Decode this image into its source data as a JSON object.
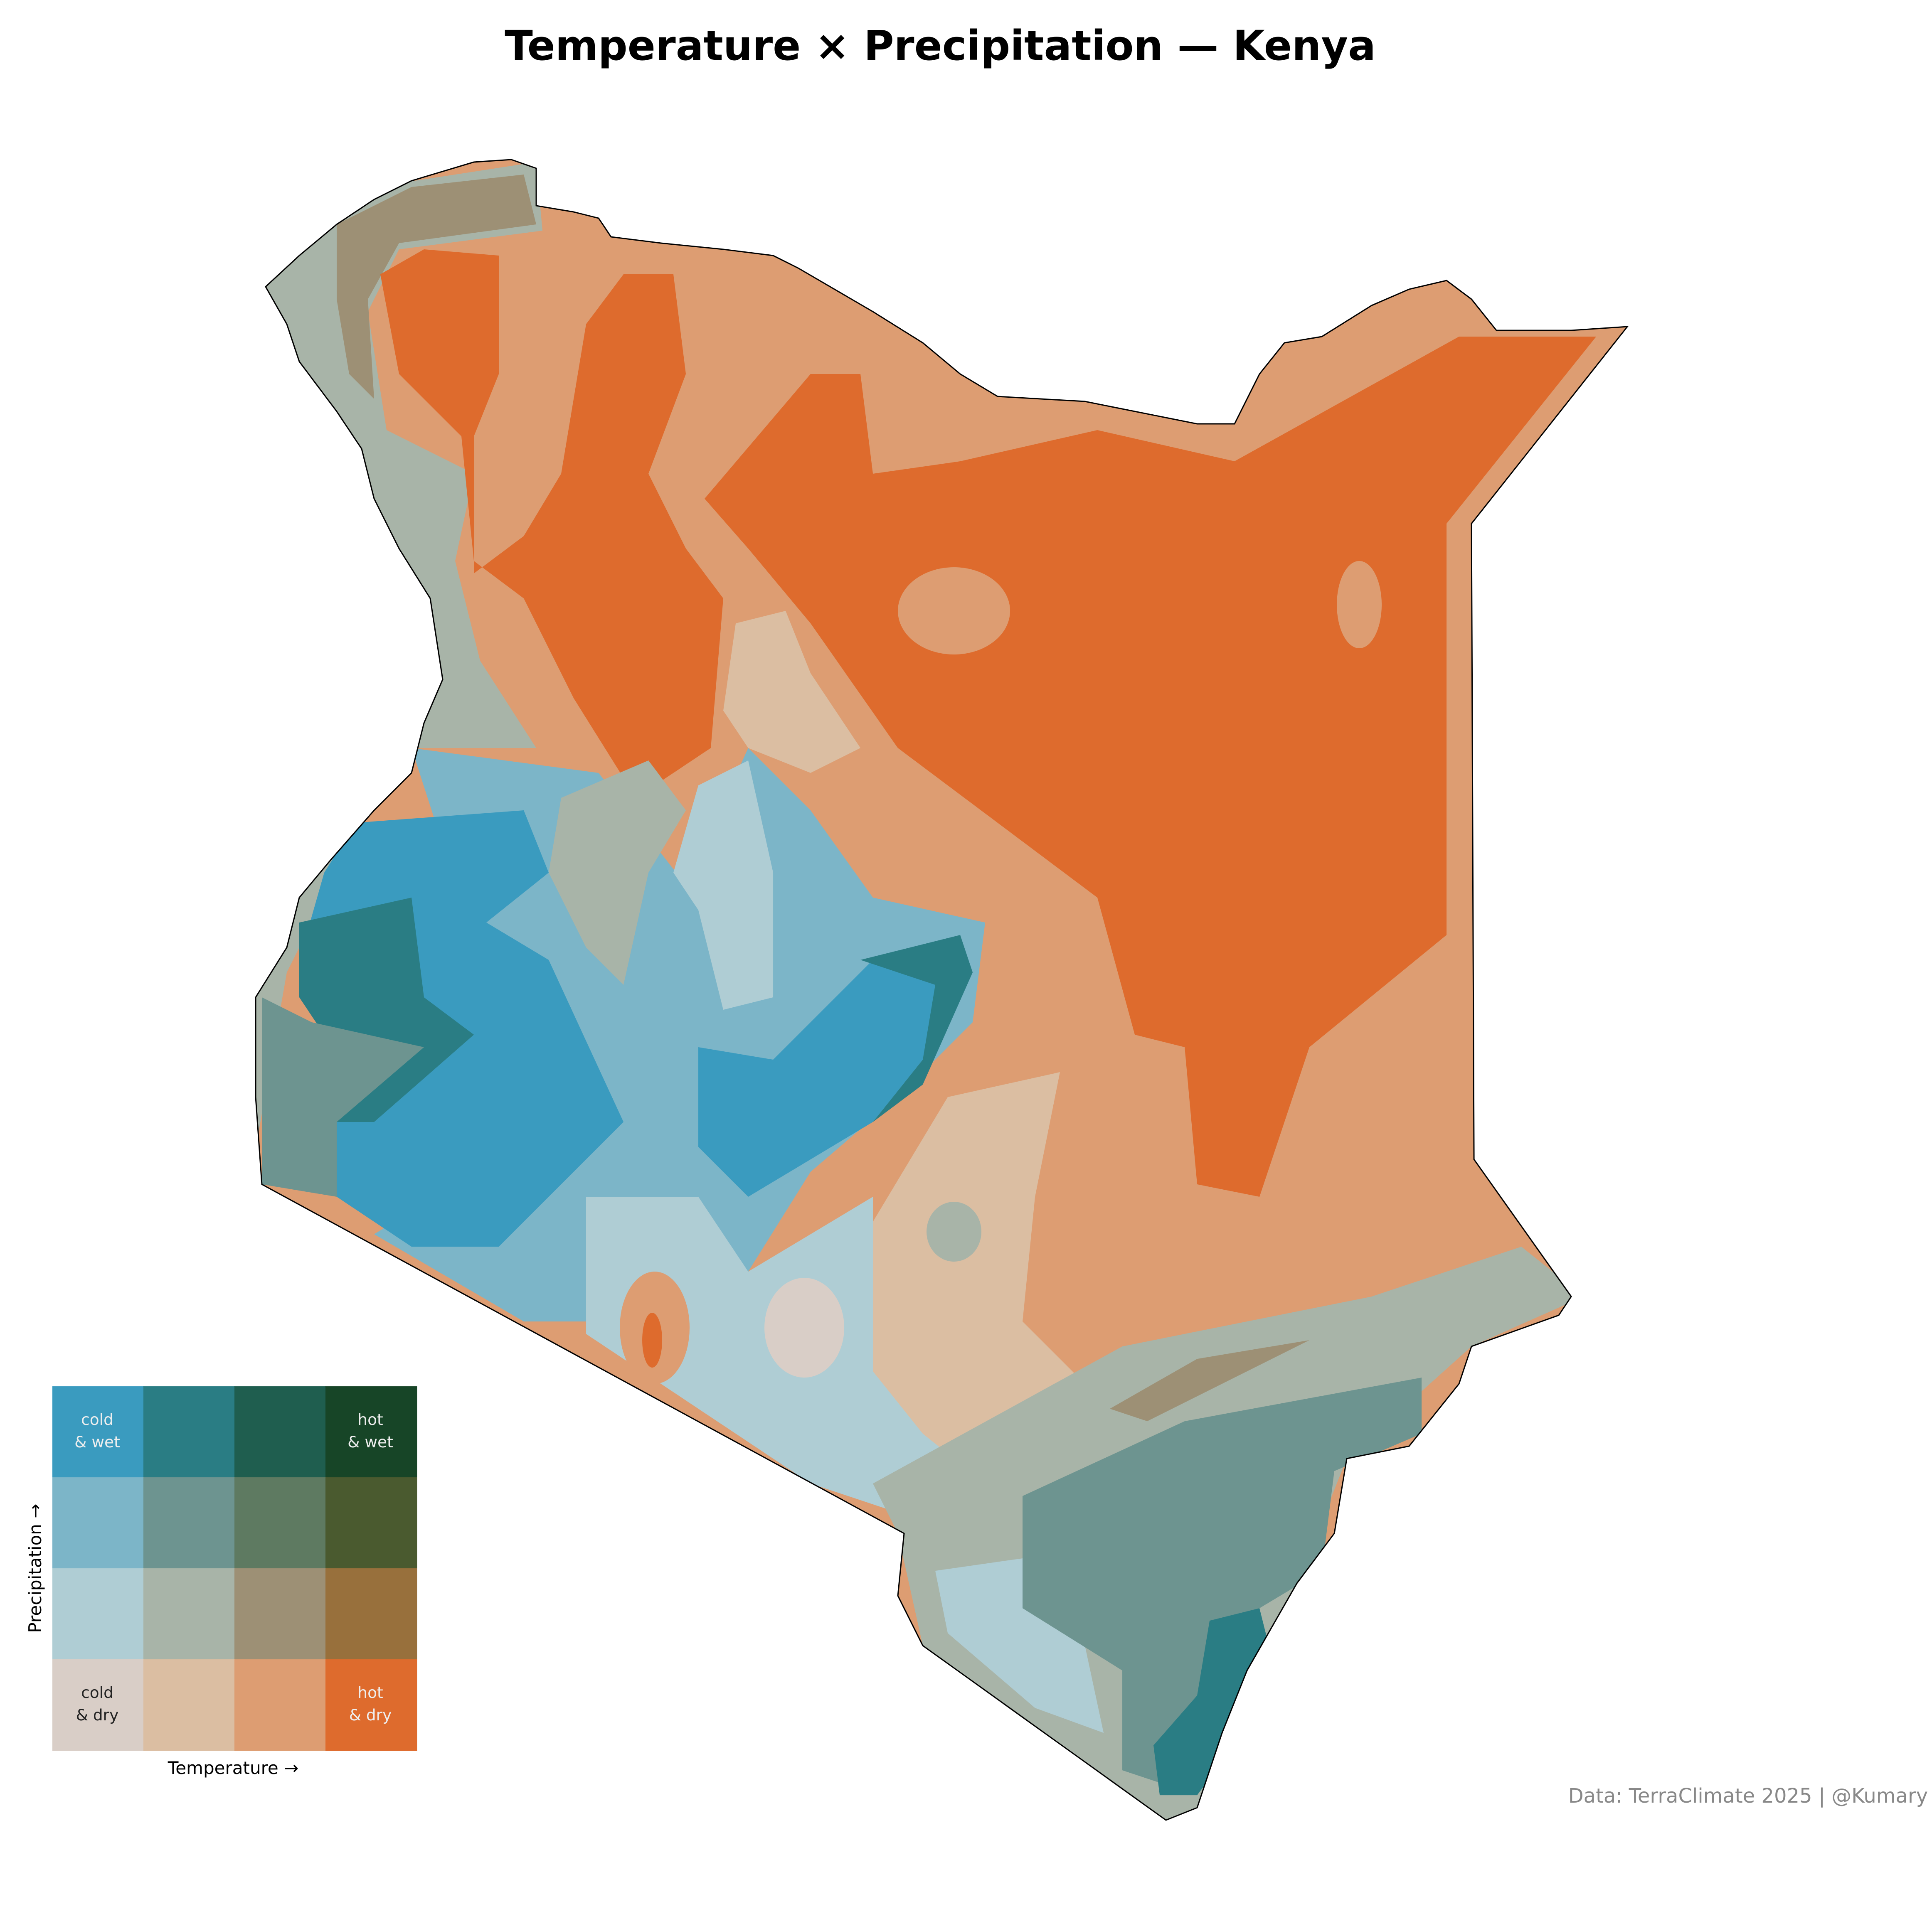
{
  "title": "Temperature × Precipitation — Kenya",
  "caption": "Data: TerraClimate 2025 | @Kumary",
  "legend": {
    "x_label": "Temperature →",
    "y_label": "Precipitation →",
    "corner_labels": {
      "cold_wet": [
        "cold",
        "& wet"
      ],
      "hot_wet": [
        "hot",
        "& wet"
      ],
      "cold_dry": [
        "cold",
        "& dry"
      ],
      "hot_dry": [
        "hot",
        "& dry"
      ]
    },
    "palette_rows_wet_to_dry": [
      [
        "#3a9bbf",
        "#2a7d84",
        "#1f5e4f",
        "#174527"
      ],
      [
        "#7cb5c8",
        "#6d9490",
        "#5e7a61",
        "#4a5a2f"
      ],
      [
        "#afcdd4",
        "#a8b4a8",
        "#9d9075",
        "#98703c"
      ],
      [
        "#d9cec7",
        "#dbbea2",
        "#dd9d72",
        "#de6b2d"
      ]
    ]
  },
  "map": {
    "region": "Kenya",
    "boundary_color": "#000000"
  }
}
